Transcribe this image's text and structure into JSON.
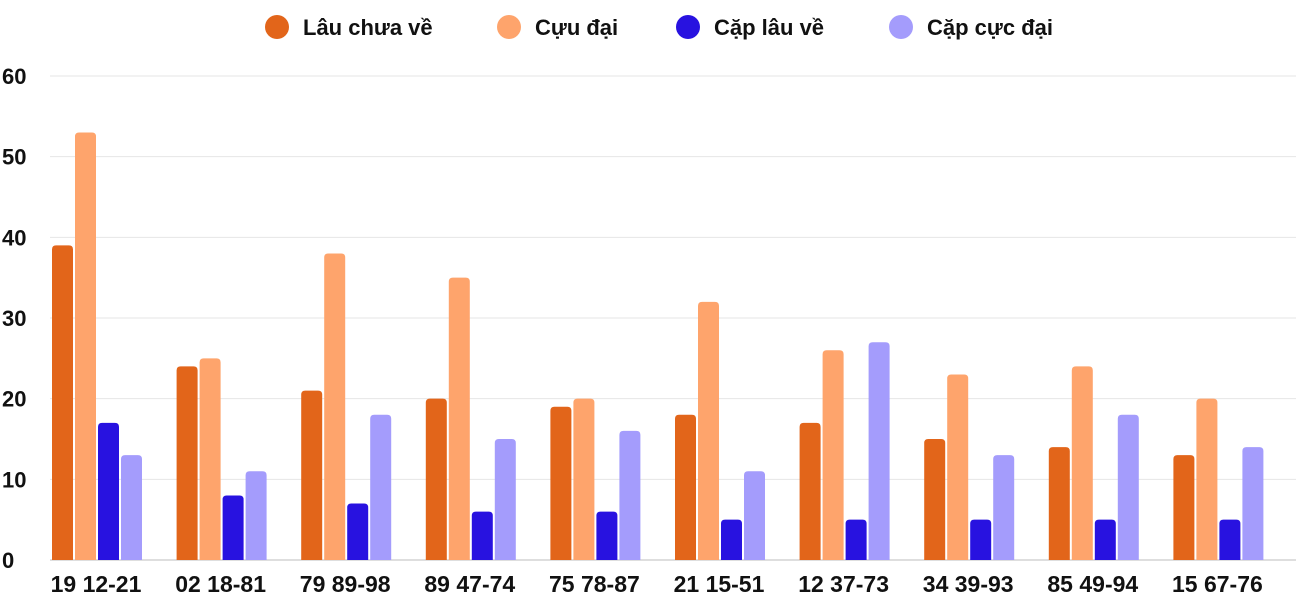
{
  "chart_data": {
    "type": "bar",
    "categories": [
      "19 12-21",
      "02 18-81",
      "79 89-98",
      "89 47-74",
      "75 78-87",
      "21 15-51",
      "12 37-73",
      "34 39-93",
      "85 49-94",
      "15 67-76"
    ],
    "series": [
      {
        "name": "Lâu chưa về",
        "color": "#e2651a",
        "values": [
          39,
          24,
          21,
          20,
          19,
          18,
          17,
          15,
          14,
          13
        ]
      },
      {
        "name": "Cựu đại",
        "color": "#fea46c",
        "values": [
          53,
          25,
          38,
          35,
          20,
          32,
          26,
          23,
          24,
          20
        ]
      },
      {
        "name": "Cặp lâu về",
        "color": "#2812e0",
        "values": [
          17,
          8,
          7,
          6,
          6,
          5,
          5,
          5,
          5,
          5
        ]
      },
      {
        "name": "Cặp cực đại",
        "color": "#a49cfc",
        "values": [
          13,
          11,
          18,
          15,
          16,
          11,
          27,
          13,
          18,
          14
        ]
      }
    ],
    "ylim": [
      0,
      60
    ],
    "yticks": [
      0,
      10,
      20,
      30,
      40,
      50,
      60
    ],
    "grid": true,
    "legend_position": "top-center",
    "title": "",
    "xlabel": "",
    "ylabel": ""
  }
}
